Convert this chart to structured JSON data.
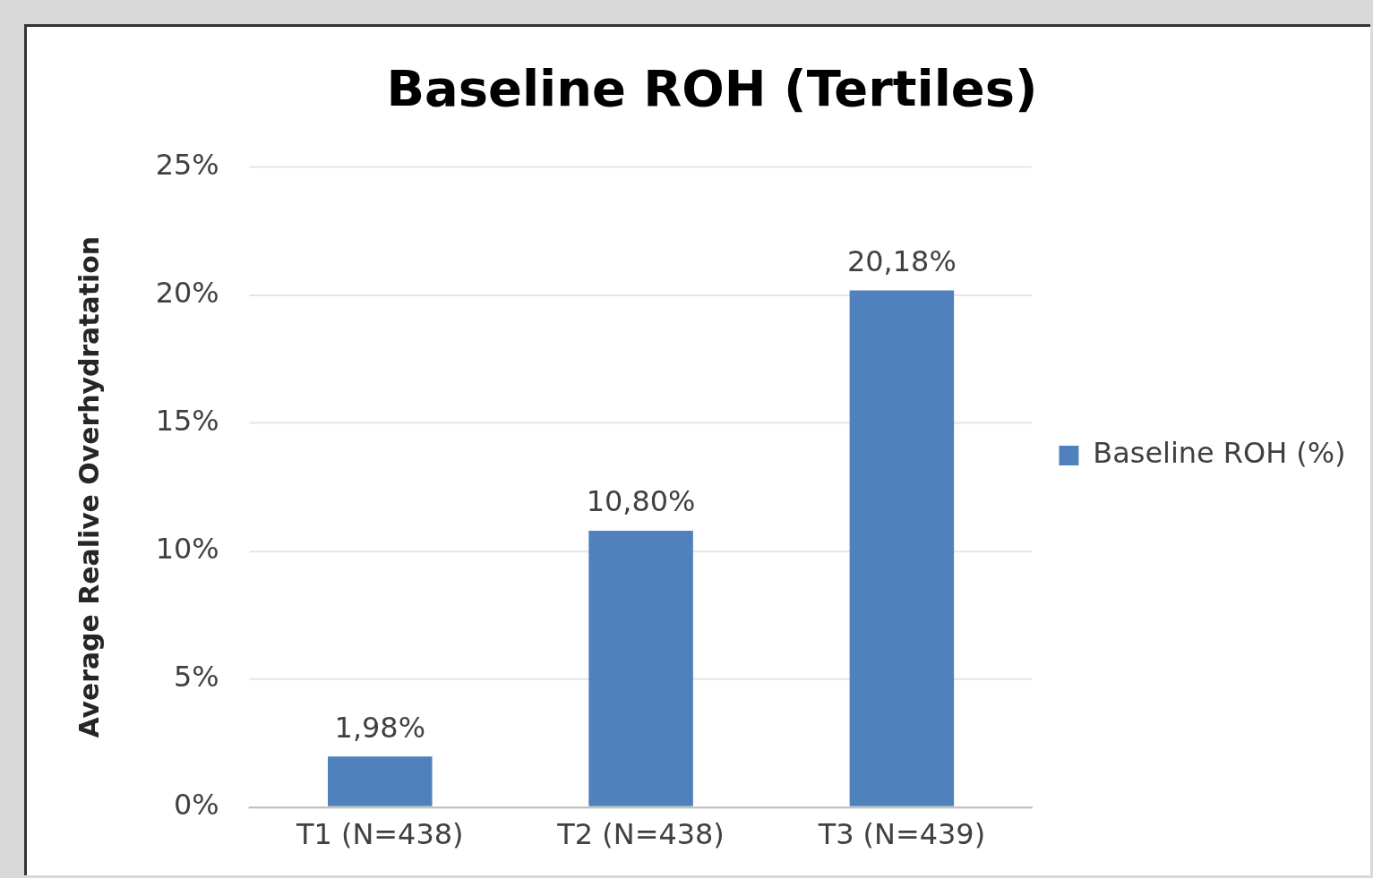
{
  "chart_data": {
    "type": "bar",
    "title": "Baseline ROH (Tertiles)",
    "ylabel": "Average Realive Overhydratation",
    "categories": [
      "T1 (N=438)",
      "T2 (N=438)",
      "T3 (N=439)"
    ],
    "series": [
      {
        "name": "Baseline ROH (%)",
        "color": "#4f81bd",
        "values": [
          1.98,
          10.8,
          20.18
        ],
        "value_labels": [
          "1,98%",
          "10,80%",
          "20,18%"
        ]
      }
    ],
    "ylim": [
      0,
      25
    ],
    "yticks": [
      {
        "value": 0,
        "label": "0%"
      },
      {
        "value": 5,
        "label": "5%"
      },
      {
        "value": 10,
        "label": "10%"
      },
      {
        "value": 15,
        "label": "15%"
      },
      {
        "value": 20,
        "label": "20%"
      },
      {
        "value": 25,
        "label": "25%"
      }
    ],
    "grid": "y",
    "legend": "right"
  }
}
